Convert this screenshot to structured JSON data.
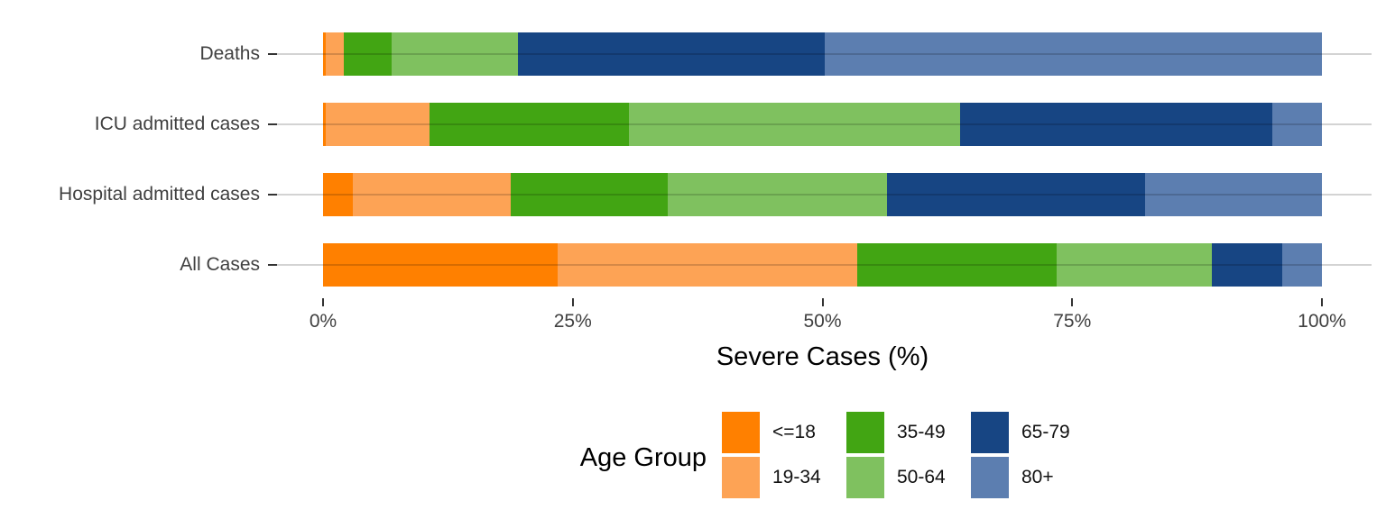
{
  "chart_data": {
    "type": "bar",
    "orientation": "horizontal",
    "stacked": true,
    "unit": "percent",
    "xlabel": "Severe Cases (%)",
    "xlim": [
      0,
      100
    ],
    "x_tick_labels": [
      "0%",
      "25%",
      "50%",
      "75%",
      "100%"
    ],
    "grid": "horizontal-only",
    "categories": [
      "Deaths",
      "ICU admitted cases",
      "Hospital admitted cases",
      "All Cases"
    ],
    "series": [
      {
        "name": "<=18",
        "color": "#FF8000",
        "values": [
          0.3,
          0.3,
          3.0,
          23.5
        ]
      },
      {
        "name": "19-34",
        "color": "#FDA355",
        "values": [
          1.8,
          10.4,
          15.8,
          30.0
        ]
      },
      {
        "name": "35-49",
        "color": "#42A513",
        "values": [
          4.8,
          19.9,
          15.7,
          19.9
        ]
      },
      {
        "name": "50-64",
        "color": "#7FC15F",
        "values": [
          12.6,
          33.2,
          22.0,
          15.6
        ]
      },
      {
        "name": "65-79",
        "color": "#174583",
        "values": [
          30.7,
          31.2,
          25.8,
          7.0
        ]
      },
      {
        "name": "80+",
        "color": "#5C7EB0",
        "values": [
          49.8,
          5.0,
          17.7,
          4.0
        ]
      }
    ],
    "legend_title": "Age Group",
    "legend_position": "bottom",
    "legend_layout": "2-rows-3-columns"
  },
  "colors": {
    "gridline": "#d3d3d3",
    "tick": "#333333",
    "axis_text": "#404040",
    "background": "#ffffff"
  }
}
